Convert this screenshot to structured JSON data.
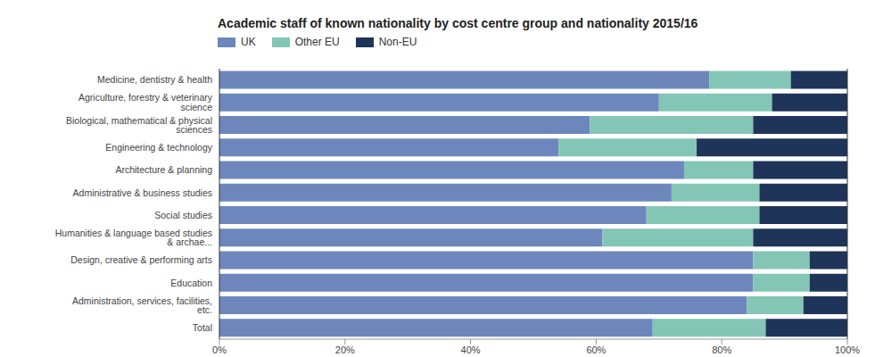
{
  "chart_data": {
    "type": "bar",
    "title": "Academic staff of known nationality by cost centre group and nationality 2015/16",
    "orientation": "horizontal",
    "stacked": true,
    "grid": false,
    "legend": "top",
    "categories": [
      "Medicine, dentistry & health",
      "Agriculture, forestry & veterinary science",
      "Biological, mathematical & physical sciences",
      "Engineering & technology",
      "Architecture & planning",
      "Administrative & business studies",
      "Social studies",
      "Humanities & language based studies & archae...",
      "Design, creative & performing arts",
      "Education",
      "Administration, services, facilities, etc.",
      "Total"
    ],
    "series": [
      {
        "name": "UK",
        "color": "#6d87bd",
        "values": [
          78,
          70,
          59,
          54,
          74,
          72,
          68,
          61,
          85,
          85,
          84,
          69
        ]
      },
      {
        "name": "Other EU",
        "color": "#84c6b6",
        "values": [
          13,
          18,
          26,
          22,
          11,
          14,
          18,
          24,
          9,
          9,
          9,
          18
        ]
      },
      {
        "name": "Non-EU",
        "color": "#1f3459",
        "values": [
          9,
          12,
          15,
          24,
          15,
          14,
          14,
          15,
          6,
          6,
          7,
          13
        ]
      }
    ],
    "xlim": [
      0,
      100
    ],
    "xticks": [
      {
        "value": 0,
        "label": "0%"
      },
      {
        "value": 20,
        "label": "20%"
      },
      {
        "value": 40,
        "label": "40%"
      },
      {
        "value": 60,
        "label": "60%"
      },
      {
        "value": 80,
        "label": "80%"
      },
      {
        "value": 100,
        "label": "100%"
      }
    ]
  }
}
